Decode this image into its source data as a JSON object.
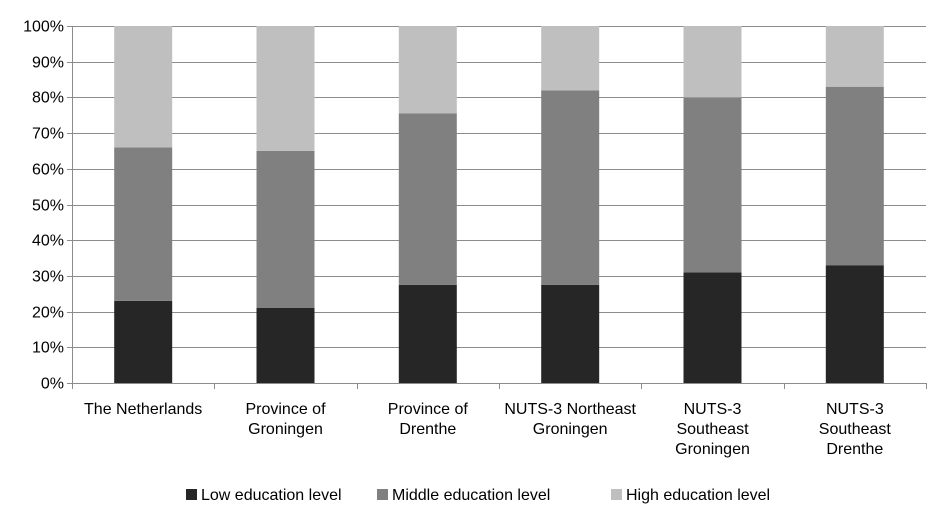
{
  "chart_data": {
    "type": "bar",
    "stacked": true,
    "percent": true,
    "categories": [
      "The Netherlands",
      "Province of Groningen",
      "Province of Drenthe",
      "NUTS-3 Northeast Groningen",
      "NUTS-3 Southeast Groningen",
      "NUTS-3 Southeast Drenthe"
    ],
    "category_lines": [
      [
        "The Netherlands"
      ],
      [
        "Province of",
        "Groningen"
      ],
      [
        "Province of",
        "Drenthe"
      ],
      [
        "NUTS-3 Northeast",
        "Groningen"
      ],
      [
        "NUTS-3",
        "Southeast",
        "Groningen"
      ],
      [
        "NUTS-3",
        "Southeast",
        "Drenthe"
      ]
    ],
    "series": [
      {
        "name": "Low education level",
        "color": "#262626",
        "values": [
          23,
          21,
          27.5,
          27.5,
          31,
          33
        ]
      },
      {
        "name": "Middle education level",
        "color": "#808080",
        "values": [
          43,
          44,
          48,
          54.5,
          49,
          50
        ]
      },
      {
        "name": "High education level",
        "color": "#bfbfbf",
        "values": [
          34,
          35,
          24.5,
          18,
          20,
          17
        ]
      }
    ],
    "ylim": [
      0,
      100
    ],
    "yticks": [
      "0%",
      "10%",
      "20%",
      "30%",
      "40%",
      "50%",
      "60%",
      "70%",
      "80%",
      "90%",
      "100%"
    ],
    "grid": true,
    "legend_position": "bottom",
    "title": "",
    "xlabel": "",
    "ylabel": ""
  }
}
